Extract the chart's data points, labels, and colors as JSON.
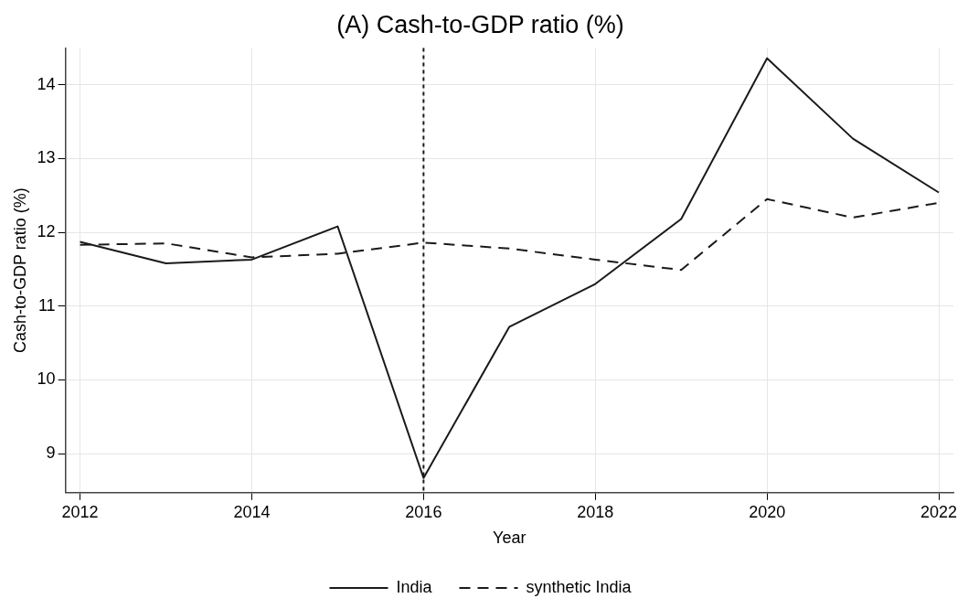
{
  "chart_data": {
    "type": "line",
    "title": "(A) Cash-to-GDP ratio (%)",
    "xlabel": "Year",
    "ylabel": "Cash-to-GDP ratio (%)",
    "x": [
      2012,
      2013,
      2014,
      2015,
      2016,
      2017,
      2018,
      2019,
      2020,
      2021,
      2022
    ],
    "series": [
      {
        "name": "India",
        "color": "#1a1a1a",
        "line_style": "solid",
        "values": [
          11.87,
          11.58,
          11.63,
          12.08,
          8.67,
          10.72,
          11.3,
          12.18,
          14.36,
          13.27,
          12.54
        ]
      },
      {
        "name": "synthetic India",
        "color": "#1a1a1a",
        "line_style": "dashed",
        "values": [
          11.83,
          11.85,
          11.66,
          11.71,
          11.86,
          11.78,
          11.63,
          11.49,
          12.45,
          12.2,
          12.4
        ]
      }
    ],
    "xlim": [
      2011.83,
      2022.17
    ],
    "xticks": [
      2012,
      2014,
      2016,
      2018,
      2020,
      2022
    ],
    "ylim": [
      8.47,
      14.5
    ],
    "yticks": [
      9,
      10,
      11,
      12,
      13,
      14
    ],
    "ref_lines": [
      {
        "axis": "x",
        "value": 2016,
        "line_style": "dotted",
        "color": "#1a1a1a"
      }
    ],
    "grid": true,
    "legend": "bottom",
    "marker": "none"
  }
}
